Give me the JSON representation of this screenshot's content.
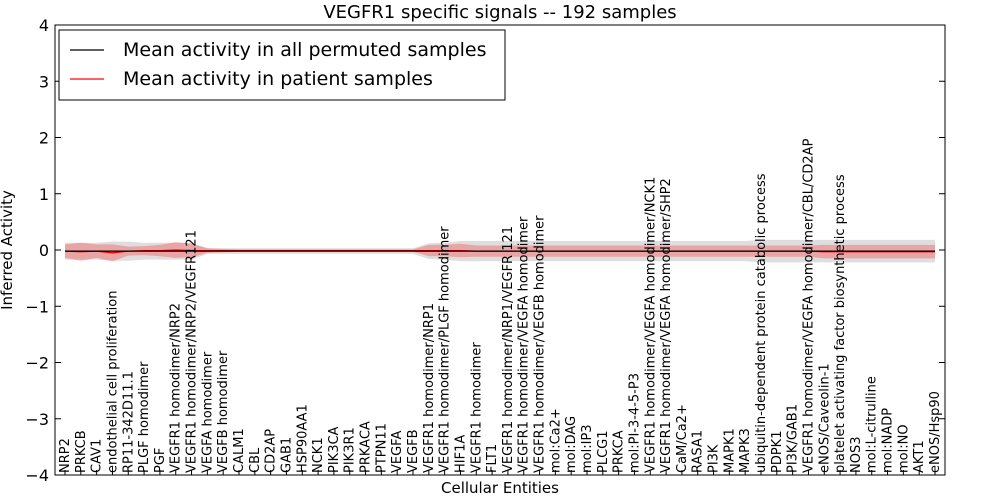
{
  "chart_data": {
    "type": "line",
    "title": "VEGFR1 specific signals -- 192 samples",
    "xlabel": "Cellular Entities",
    "ylabel": "Inferred Activity",
    "ylim": [
      -4,
      4
    ],
    "yticks": [
      -4,
      -3,
      -2,
      -1,
      0,
      1,
      2,
      3,
      4
    ],
    "grid": false,
    "legend_position": "top-left",
    "categories": [
      "NRP2",
      "PRKCB",
      "CAV1",
      "endothelial cell proliferation",
      "RP11-342D11.1",
      "PLGF homodimer",
      "PGF",
      "VEGFR1 homodimer/NRP2",
      "VEGFR1 homodimer/NRP2/VEGFR121",
      "VEGFA homodimer",
      "VEGFB homodimer",
      "CALM1",
      "CBL",
      "CD2AP",
      "GAB1",
      "HSP90AA1",
      "NCK1",
      "PIK3CA",
      "PIK3R1",
      "PRKACA",
      "PTPN11",
      "VEGFA",
      "VEGFB",
      "VEGFR1 homodimer/NRP1",
      "VEGFR1 homodimer/PLGF homodimer",
      "HIF1A",
      "VEGFR1 homodimer",
      "FLT1",
      "VEGFR1 homodimer/NRP1/VEGFR 121",
      "VEGFR1 homodimer/VEGFA homodimer",
      "VEGFR1 homodimer/VEGFB homodimer",
      "mol:Ca2+",
      "mol:DAG",
      "mol:IP3",
      "PLCG1",
      "PRKCA",
      "mol:PI-3-4-5-P3",
      "VEGFR1 homodimer/VEGFA homodimer/NCK1",
      "VEGFR1 homodimer/VEGFA homodimer/SHP2",
      "CaM/Ca2+",
      "RASA1",
      "PI3K",
      "MAPK1",
      "MAPK3",
      "ubiquitin-dependent protein catabolic process",
      "PDPK1",
      "PI3K/GAB1",
      "VEGFR1 homodimer/VEGFA homodimer/CBL/CD2AP",
      "eNOS/Caveolin-1",
      "platelet activating factor biosynthetic process",
      "NOS3",
      "mol:L-citrulline",
      "mol:NADP",
      "mol:NO",
      "AKT1",
      "eNOS/Hsp90"
    ],
    "series": [
      {
        "name": "Mean activity in all permuted samples",
        "color": "#000000",
        "values": [
          -0.02,
          -0.02,
          -0.02,
          -0.02,
          -0.02,
          -0.02,
          -0.02,
          -0.02,
          -0.02,
          -0.02,
          -0.02,
          -0.02,
          -0.02,
          -0.02,
          -0.02,
          -0.02,
          -0.02,
          -0.02,
          -0.02,
          -0.02,
          -0.02,
          -0.02,
          -0.02,
          -0.02,
          -0.02,
          -0.02,
          -0.02,
          -0.02,
          -0.02,
          -0.02,
          -0.02,
          -0.02,
          -0.02,
          -0.02,
          -0.02,
          -0.02,
          -0.02,
          -0.02,
          -0.02,
          -0.02,
          -0.02,
          -0.02,
          -0.02,
          -0.02,
          -0.02,
          -0.02,
          -0.02,
          -0.02,
          -0.02,
          -0.02,
          -0.02,
          -0.02,
          -0.02,
          -0.02,
          -0.02,
          -0.02
        ],
        "band": [
          0.15,
          0.15,
          0.15,
          0.17,
          0.17,
          0.15,
          0.15,
          0.15,
          0.15,
          0.05,
          0.05,
          0.05,
          0.05,
          0.05,
          0.05,
          0.05,
          0.05,
          0.05,
          0.05,
          0.05,
          0.05,
          0.05,
          0.05,
          0.14,
          0.15,
          0.18,
          0.18,
          0.18,
          0.18,
          0.18,
          0.18,
          0.18,
          0.18,
          0.18,
          0.18,
          0.18,
          0.18,
          0.18,
          0.18,
          0.18,
          0.18,
          0.18,
          0.18,
          0.18,
          0.2,
          0.2,
          0.2,
          0.2,
          0.2,
          0.2,
          0.2,
          0.2,
          0.2,
          0.2,
          0.2,
          0.2
        ]
      },
      {
        "name": "Mean activity in patient samples",
        "color": "#ff0000",
        "values": [
          -0.02,
          -0.03,
          -0.02,
          -0.05,
          -0.02,
          -0.01,
          -0.01,
          0,
          -0.01,
          -0.01,
          -0.01,
          -0.01,
          -0.01,
          -0.01,
          -0.01,
          -0.01,
          -0.01,
          -0.01,
          -0.01,
          -0.01,
          -0.01,
          -0.01,
          -0.01,
          -0.01,
          -0.01,
          -0.01,
          -0.02,
          -0.02,
          -0.02,
          -0.02,
          -0.02,
          -0.02,
          -0.02,
          -0.02,
          -0.02,
          -0.02,
          -0.02,
          -0.02,
          -0.02,
          -0.02,
          -0.02,
          -0.02,
          -0.02,
          -0.02,
          -0.02,
          -0.02,
          -0.02,
          -0.02,
          -0.03,
          -0.03,
          -0.03,
          -0.03,
          -0.03,
          -0.03,
          -0.03,
          -0.03
        ],
        "band": [
          0.12,
          0.16,
          0.12,
          0.15,
          0.08,
          0.08,
          0.1,
          0.14,
          0.12,
          0.04,
          0.03,
          0.02,
          0.02,
          0.02,
          0.02,
          0.02,
          0.02,
          0.02,
          0.02,
          0.02,
          0.02,
          0.02,
          0.02,
          0.1,
          0.1,
          0.12,
          0.1,
          0.1,
          0.1,
          0.1,
          0.1,
          0.1,
          0.1,
          0.1,
          0.1,
          0.1,
          0.1,
          0.1,
          0.1,
          0.1,
          0.1,
          0.1,
          0.1,
          0.1,
          0.1,
          0.1,
          0.1,
          0.1,
          0.12,
          0.12,
          0.12,
          0.12,
          0.12,
          0.12,
          0.12,
          0.12
        ]
      }
    ]
  }
}
